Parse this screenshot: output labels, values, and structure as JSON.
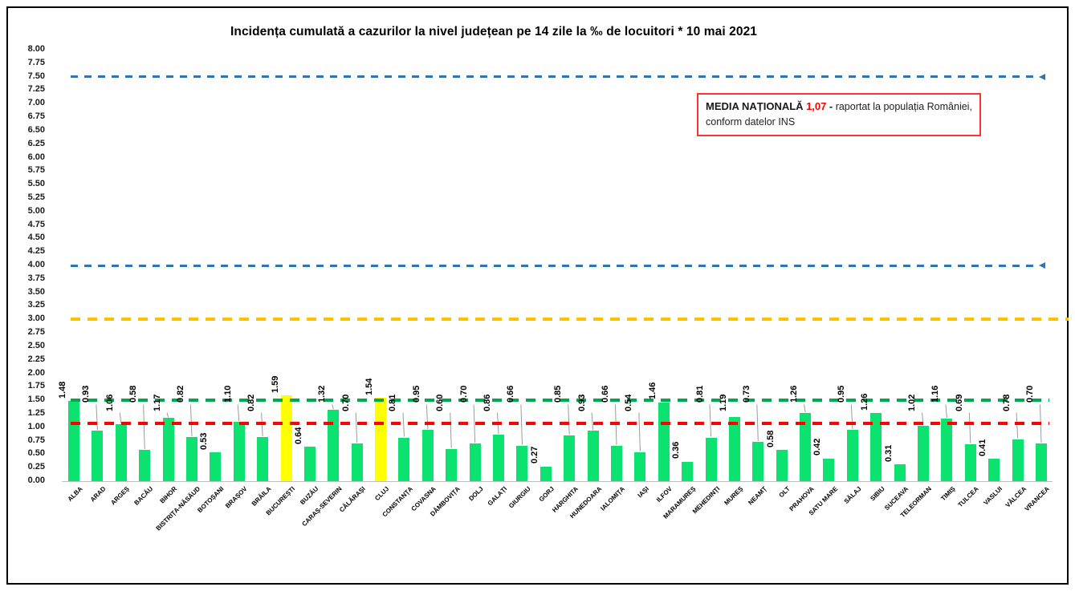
{
  "figure": {
    "note_box": {
      "label": "MEDIA NAȚIONALĂ",
      "value": "1,07",
      "separator": "-",
      "text_line1": "raportat la populația României,",
      "text_line2": "conform datelor INS",
      "border_color": "#ff3232",
      "value_color": "#ff0000"
    }
  },
  "chart_data": {
    "type": "bar",
    "title": "Incidența cumulată a cazurilor la nivel județean pe 14 zile la ‰ de locuitori *  10 mai 2021",
    "xlabel": "",
    "ylabel": "",
    "ylim": [
      0,
      8
    ],
    "y_tick_step": 0.25,
    "grid": false,
    "y_tick_labels": [
      "8.00",
      "7.75",
      "7.50",
      "7.25",
      "7.00",
      "6.75",
      "6.50",
      "6.25",
      "6.00",
      "5.75",
      "5.50",
      "5.25",
      "5.00",
      "4.75",
      "4.50",
      "4.25",
      "4.00",
      "3.75",
      "3.50",
      "3.25",
      "3.00",
      "2.75",
      "2.50",
      "2.25",
      "2.00",
      "1.75",
      "1.50",
      "1.25",
      "1.00",
      "0.75",
      "0.50",
      "0.25",
      "0.00"
    ],
    "categories": [
      "ALBA",
      "ARAD",
      "ARGEȘ",
      "BACĂU",
      "BIHOR",
      "BISTRIȚA-NĂSĂUD",
      "BOTOȘANI",
      "BRAȘOV",
      "BRĂILA",
      "BUCUREȘTI",
      "BUZĂU",
      "CARAȘ-SEVERIN",
      "CĂLĂRAȘI",
      "CLUJ",
      "CONSTANȚA",
      "COVASNA",
      "DÂMBOVIȚA",
      "DOLJ",
      "GALAȚI",
      "GIURGIU",
      "GORJ",
      "HARGHITA",
      "HUNEDOARA",
      "IALOMIȚA",
      "IAȘI",
      "ILFOV",
      "MARAMUREȘ",
      "MEHEDINȚI",
      "MUREȘ",
      "NEAMȚ",
      "OLT",
      "PRAHOVA",
      "SATU MARE",
      "SĂLAJ",
      "SIBIU",
      "SUCEAVA",
      "TELEORMAN",
      "TIMIȘ",
      "TULCEA",
      "VASLUI",
      "VÂLCEA",
      "VRANCEA"
    ],
    "values": [
      1.48,
      0.93,
      1.06,
      0.58,
      1.17,
      0.82,
      0.53,
      1.1,
      0.82,
      1.59,
      0.64,
      1.32,
      0.7,
      1.54,
      0.81,
      0.95,
      0.6,
      0.7,
      0.86,
      0.66,
      0.27,
      0.85,
      0.93,
      0.66,
      0.54,
      1.46,
      0.36,
      0.81,
      1.19,
      0.73,
      0.58,
      1.26,
      0.42,
      0.95,
      1.26,
      0.31,
      1.02,
      1.16,
      0.69,
      0.41,
      0.78,
      0.7
    ],
    "bar_color": "#0ce26f",
    "highlight_color": "#ffff00",
    "highlighted_categories": [
      "BUCUREȘTI",
      "CLUJ"
    ],
    "reference_lines": [
      {
        "value": 7.5,
        "color": "#2e75b6",
        "style": "dashed",
        "arrow_right": true
      },
      {
        "value": 4.0,
        "color": "#2e75b6",
        "style": "dashed",
        "arrow_right": true
      },
      {
        "value": 3.0,
        "color": "#ffc000",
        "style": "dashed",
        "arrow_right": false
      },
      {
        "value": 1.5,
        "color": "#00a84f",
        "style": "dashed",
        "arrow_right": false
      },
      {
        "value": 1.07,
        "color": "#ff0000",
        "style": "dashed",
        "arrow_right": false
      }
    ]
  }
}
